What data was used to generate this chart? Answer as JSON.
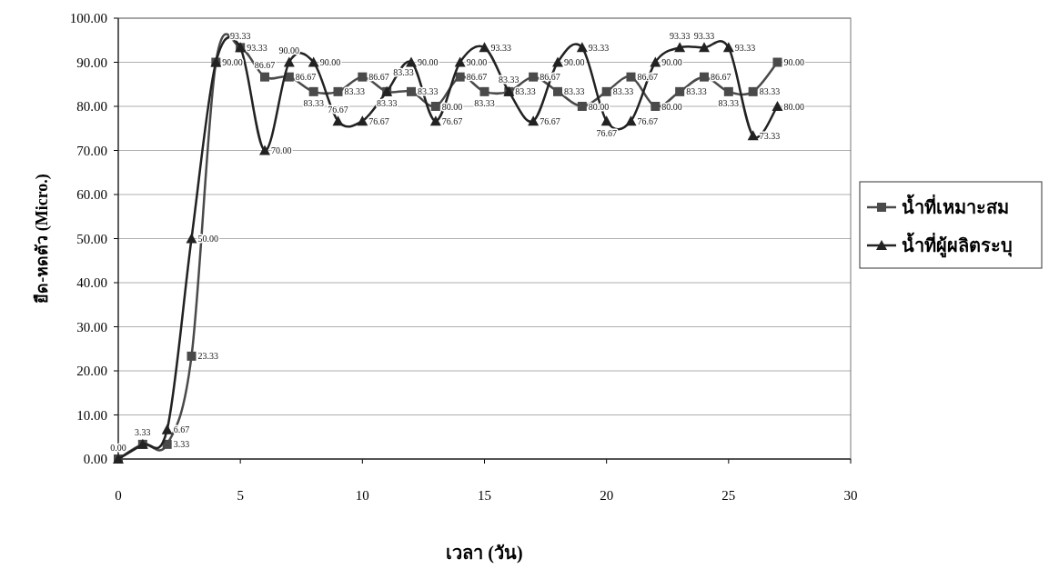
{
  "chart_data": {
    "type": "line",
    "xlabel": "เวลา (วัน)",
    "ylabel": "ยืด-หดตัว (Micro.)",
    "xlim": [
      0,
      30
    ],
    "ylim": [
      0,
      100
    ],
    "xticks": [
      0,
      5,
      10,
      15,
      20,
      25,
      30
    ],
    "yticks": [
      {
        "value": 0,
        "label": "0.00"
      },
      {
        "value": 10,
        "label": "10.00"
      },
      {
        "value": 20,
        "label": "20.00"
      },
      {
        "value": 30,
        "label": "30.00"
      },
      {
        "value": 40,
        "label": "40.00"
      },
      {
        "value": 50,
        "label": "50.00"
      },
      {
        "value": 60,
        "label": "60.00"
      },
      {
        "value": 70,
        "label": "70.00"
      },
      {
        "value": 80,
        "label": "80.00"
      },
      {
        "value": 90,
        "label": "90.00"
      },
      {
        "value": 100,
        "label": "100.00"
      }
    ],
    "grid": "y",
    "legend": "right",
    "x": [
      0,
      1,
      2,
      3,
      4,
      5,
      6,
      7,
      8,
      9,
      10,
      11,
      12,
      13,
      14,
      15,
      16,
      17,
      18,
      19,
      20,
      21,
      22,
      23,
      24,
      25,
      26,
      27
    ],
    "series": [
      {
        "name": "น้ำที่เหมาะสม",
        "color": "#4a4a4a",
        "marker": "square",
        "values": [
          0,
          3.33,
          3.33,
          23.33,
          90,
          93.33,
          86.67,
          86.67,
          83.33,
          83.33,
          86.67,
          83.33,
          83.33,
          80,
          86.67,
          83.33,
          83.33,
          86.67,
          83.33,
          80,
          83.33,
          86.67,
          80,
          83.33,
          86.67,
          83.33,
          83.33,
          90
        ],
        "value_labels": [
          "0.00",
          "3.33",
          "3.33",
          "23.33",
          "90.00",
          "93.33",
          "86.67",
          "86.67",
          "83.33",
          "83.33",
          "86.67",
          "83.33",
          "83.33",
          "80.00",
          "86.67",
          "83.33",
          "83.33",
          "86.67",
          "83.33",
          "80.00",
          "83.33",
          "86.67",
          "80.00",
          "83.33",
          "86.67",
          "83.33",
          "83.33",
          "90.00"
        ]
      },
      {
        "name": "น้ำที่ผู้ผลิตระบุ",
        "color": "#222222",
        "marker": "triangle",
        "values": [
          0,
          3.33,
          6.67,
          50,
          90,
          93.33,
          70,
          90,
          90,
          76.67,
          76.67,
          83.33,
          90,
          76.67,
          90,
          93.33,
          83.33,
          76.67,
          90,
          93.33,
          76.67,
          76.67,
          90,
          93.33,
          93.33,
          93.33,
          73.33,
          80
        ],
        "value_labels": [
          null,
          null,
          "6.67",
          "50.00",
          null,
          "93.33",
          "70.00",
          "90.00",
          "90.00",
          "76.67",
          "76.67",
          "83.33",
          "90.00",
          "76.67",
          "90.00",
          "93.33",
          "83.33",
          "76.67",
          "90.00",
          "93.33",
          "76.67",
          "76.67",
          "90.00",
          "93.33",
          "93.33",
          "93.33",
          "73.33",
          "80.00"
        ]
      }
    ]
  }
}
